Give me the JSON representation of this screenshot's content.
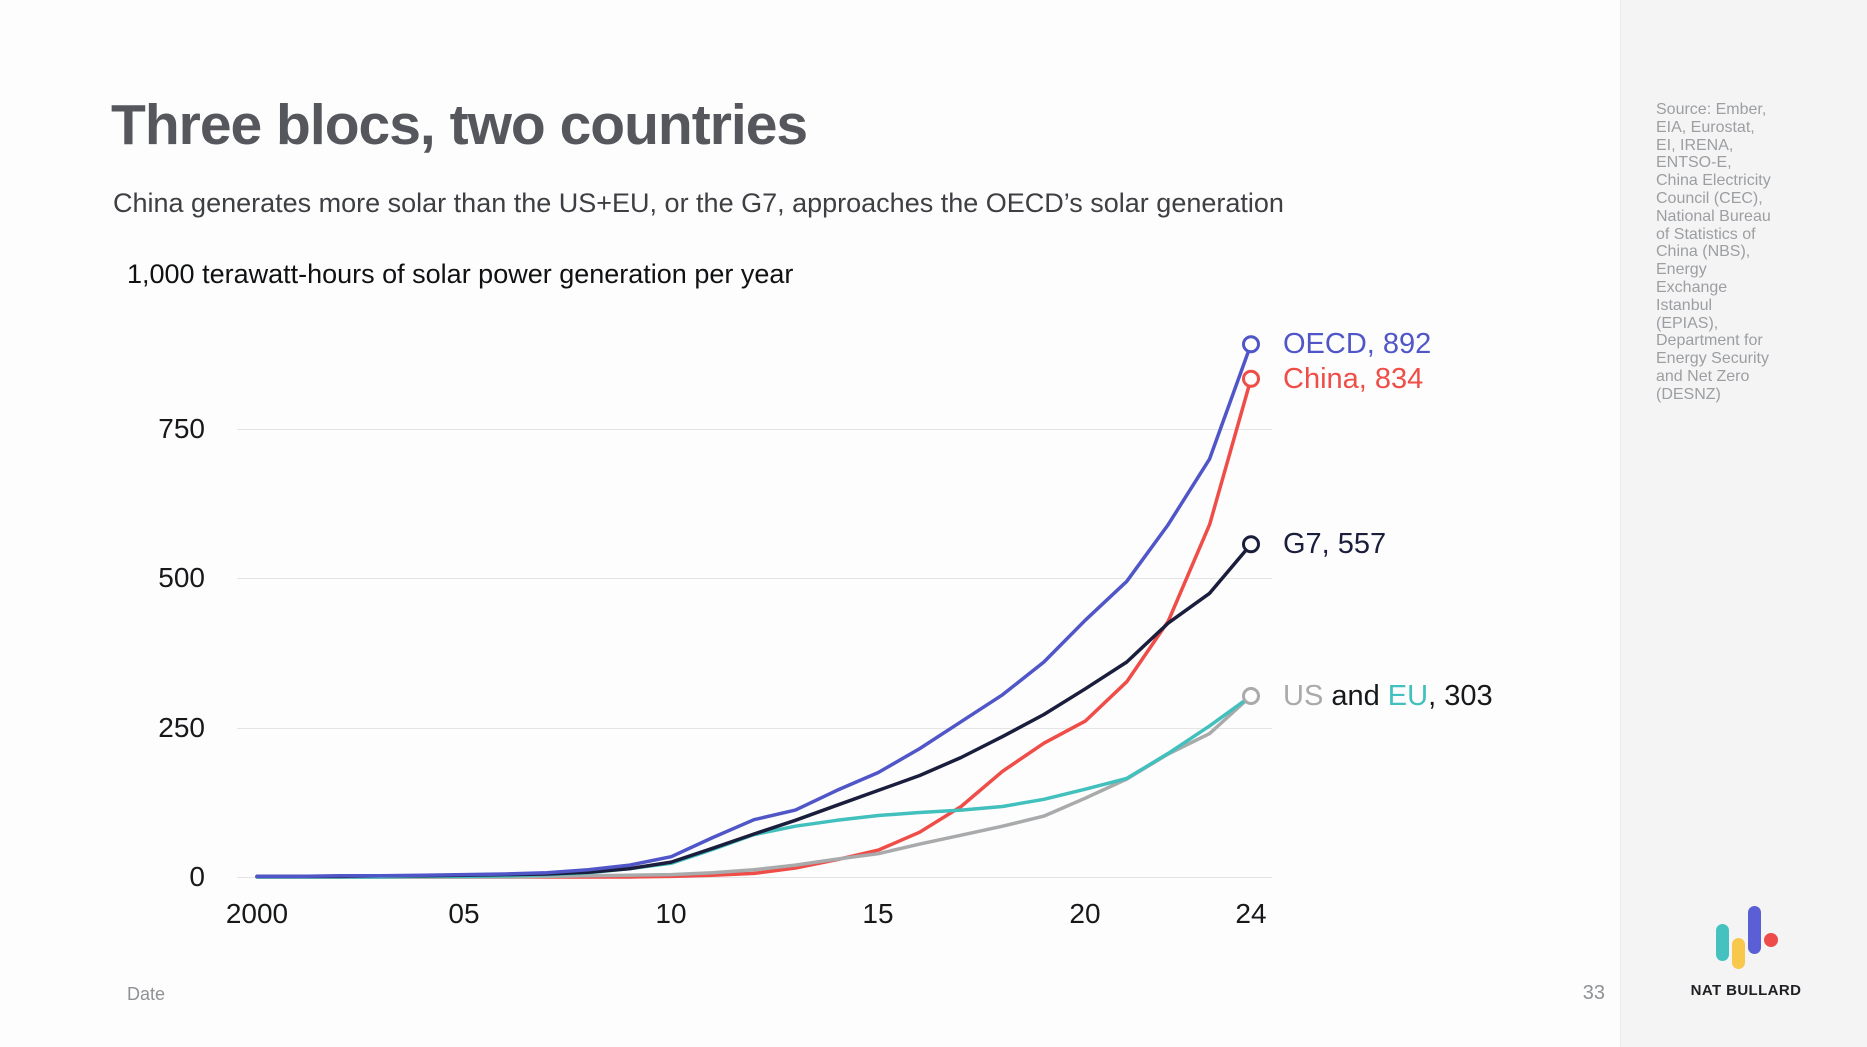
{
  "slide": {
    "title": "Three blocs, two countries",
    "subtitle": "China generates more solar than the US+EU, or the G7, approaches the OECD’s solar generation",
    "chart_note": "1,000 terawatt-hours of solar power generation per year",
    "footer_label": "Date",
    "page_number": "33"
  },
  "sidebar": {
    "source": "Source: Ember, EIA, Eurostat, EI, IRENA, ENTSO-E, China Electricity Council (CEC), National Bureau of Statistics of China (NBS), Energy Exchange Istanbul (EPIAS), Department for Energy Security and Net Zero (DESNZ)",
    "logo_text": "NAT BULLARD",
    "logo_colors": {
      "teal": "#45c2c0",
      "yellow": "#f8c84d",
      "indigo": "#5a5fd6",
      "red": "#ee4b4b"
    }
  },
  "chart_data": {
    "type": "line",
    "title": "1,000 terawatt-hours of solar power generation per year",
    "xlabel": "Date",
    "ylabel": "",
    "grid": "horizontal",
    "xlim": [
      2000,
      2024
    ],
    "ylim": [
      0,
      925
    ],
    "x": [
      2000,
      2001,
      2002,
      2003,
      2004,
      2005,
      2006,
      2007,
      2008,
      2009,
      2010,
      2011,
      2012,
      2013,
      2014,
      2015,
      2016,
      2017,
      2018,
      2019,
      2020,
      2021,
      2022,
      2023,
      2024
    ],
    "xticks": [
      {
        "x": 2000,
        "label": "2000"
      },
      {
        "x": 2005,
        "label": "05"
      },
      {
        "x": 2010,
        "label": "10"
      },
      {
        "x": 2015,
        "label": "15"
      },
      {
        "x": 2020,
        "label": "20"
      },
      {
        "x": 2024,
        "label": "24"
      }
    ],
    "yticks": [
      {
        "v": 0,
        "label": "0"
      },
      {
        "v": 250,
        "label": "250"
      },
      {
        "v": 500,
        "label": "500"
      },
      {
        "v": 750,
        "label": "750"
      }
    ],
    "series": [
      {
        "name": "China",
        "color": "#ef4d48",
        "marker": true,
        "values": [
          0,
          0,
          0,
          0,
          0,
          0,
          0,
          0,
          0,
          0,
          1,
          3,
          6,
          15,
          29,
          45,
          75,
          118,
          177,
          224,
          261,
          327,
          428,
          590,
          834
        ]
      },
      {
        "name": "US",
        "color": "#a8aaac",
        "marker": true,
        "values": [
          0,
          0,
          0,
          0,
          0,
          0,
          0,
          1,
          2,
          3,
          4,
          7,
          12,
          20,
          30,
          39,
          55,
          70,
          85,
          102,
          132,
          164,
          206,
          240,
          303
        ]
      },
      {
        "name": "EU",
        "color": "#41c0bd",
        "marker": false,
        "values": [
          0,
          0,
          0,
          0,
          1,
          1,
          2,
          4,
          7,
          14,
          23,
          46,
          71,
          85,
          95,
          103,
          108,
          112,
          118,
          130,
          147,
          165,
          207,
          253,
          303
        ]
      },
      {
        "name": "G7",
        "color": "#1a1e3c",
        "marker": true,
        "values": [
          1,
          1,
          1,
          2,
          2,
          3,
          4,
          5,
          8,
          14,
          25,
          48,
          72,
          95,
          120,
          145,
          170,
          200,
          235,
          272,
          315,
          360,
          425,
          475,
          557
        ]
      },
      {
        "name": "OECD",
        "color": "#5056c7",
        "marker": true,
        "values": [
          1,
          1,
          2,
          2,
          3,
          4,
          5,
          7,
          12,
          20,
          34,
          66,
          96,
          112,
          145,
          175,
          215,
          260,
          305,
          360,
          430,
          495,
          590,
          700,
          892
        ]
      }
    ],
    "end_labels": [
      {
        "value": 892,
        "parts": [
          {
            "text": "OECD, 892",
            "color": "#5056c7"
          }
        ]
      },
      {
        "value": 834,
        "parts": [
          {
            "text": "China, 834",
            "color": "#ef4d48"
          }
        ]
      },
      {
        "value": 557,
        "parts": [
          {
            "text": "G7, 557",
            "color": "#1a1e3c"
          }
        ]
      },
      {
        "value": 303,
        "parts": [
          {
            "text": "US",
            "color": "#a8aaac"
          },
          {
            "text": " and ",
            "color": "#17181a"
          },
          {
            "text": "EU",
            "color": "#41c0bd"
          },
          {
            "text": ", 303",
            "color": "#17181a"
          }
        ]
      }
    ],
    "legend_position": "end-of-line"
  }
}
